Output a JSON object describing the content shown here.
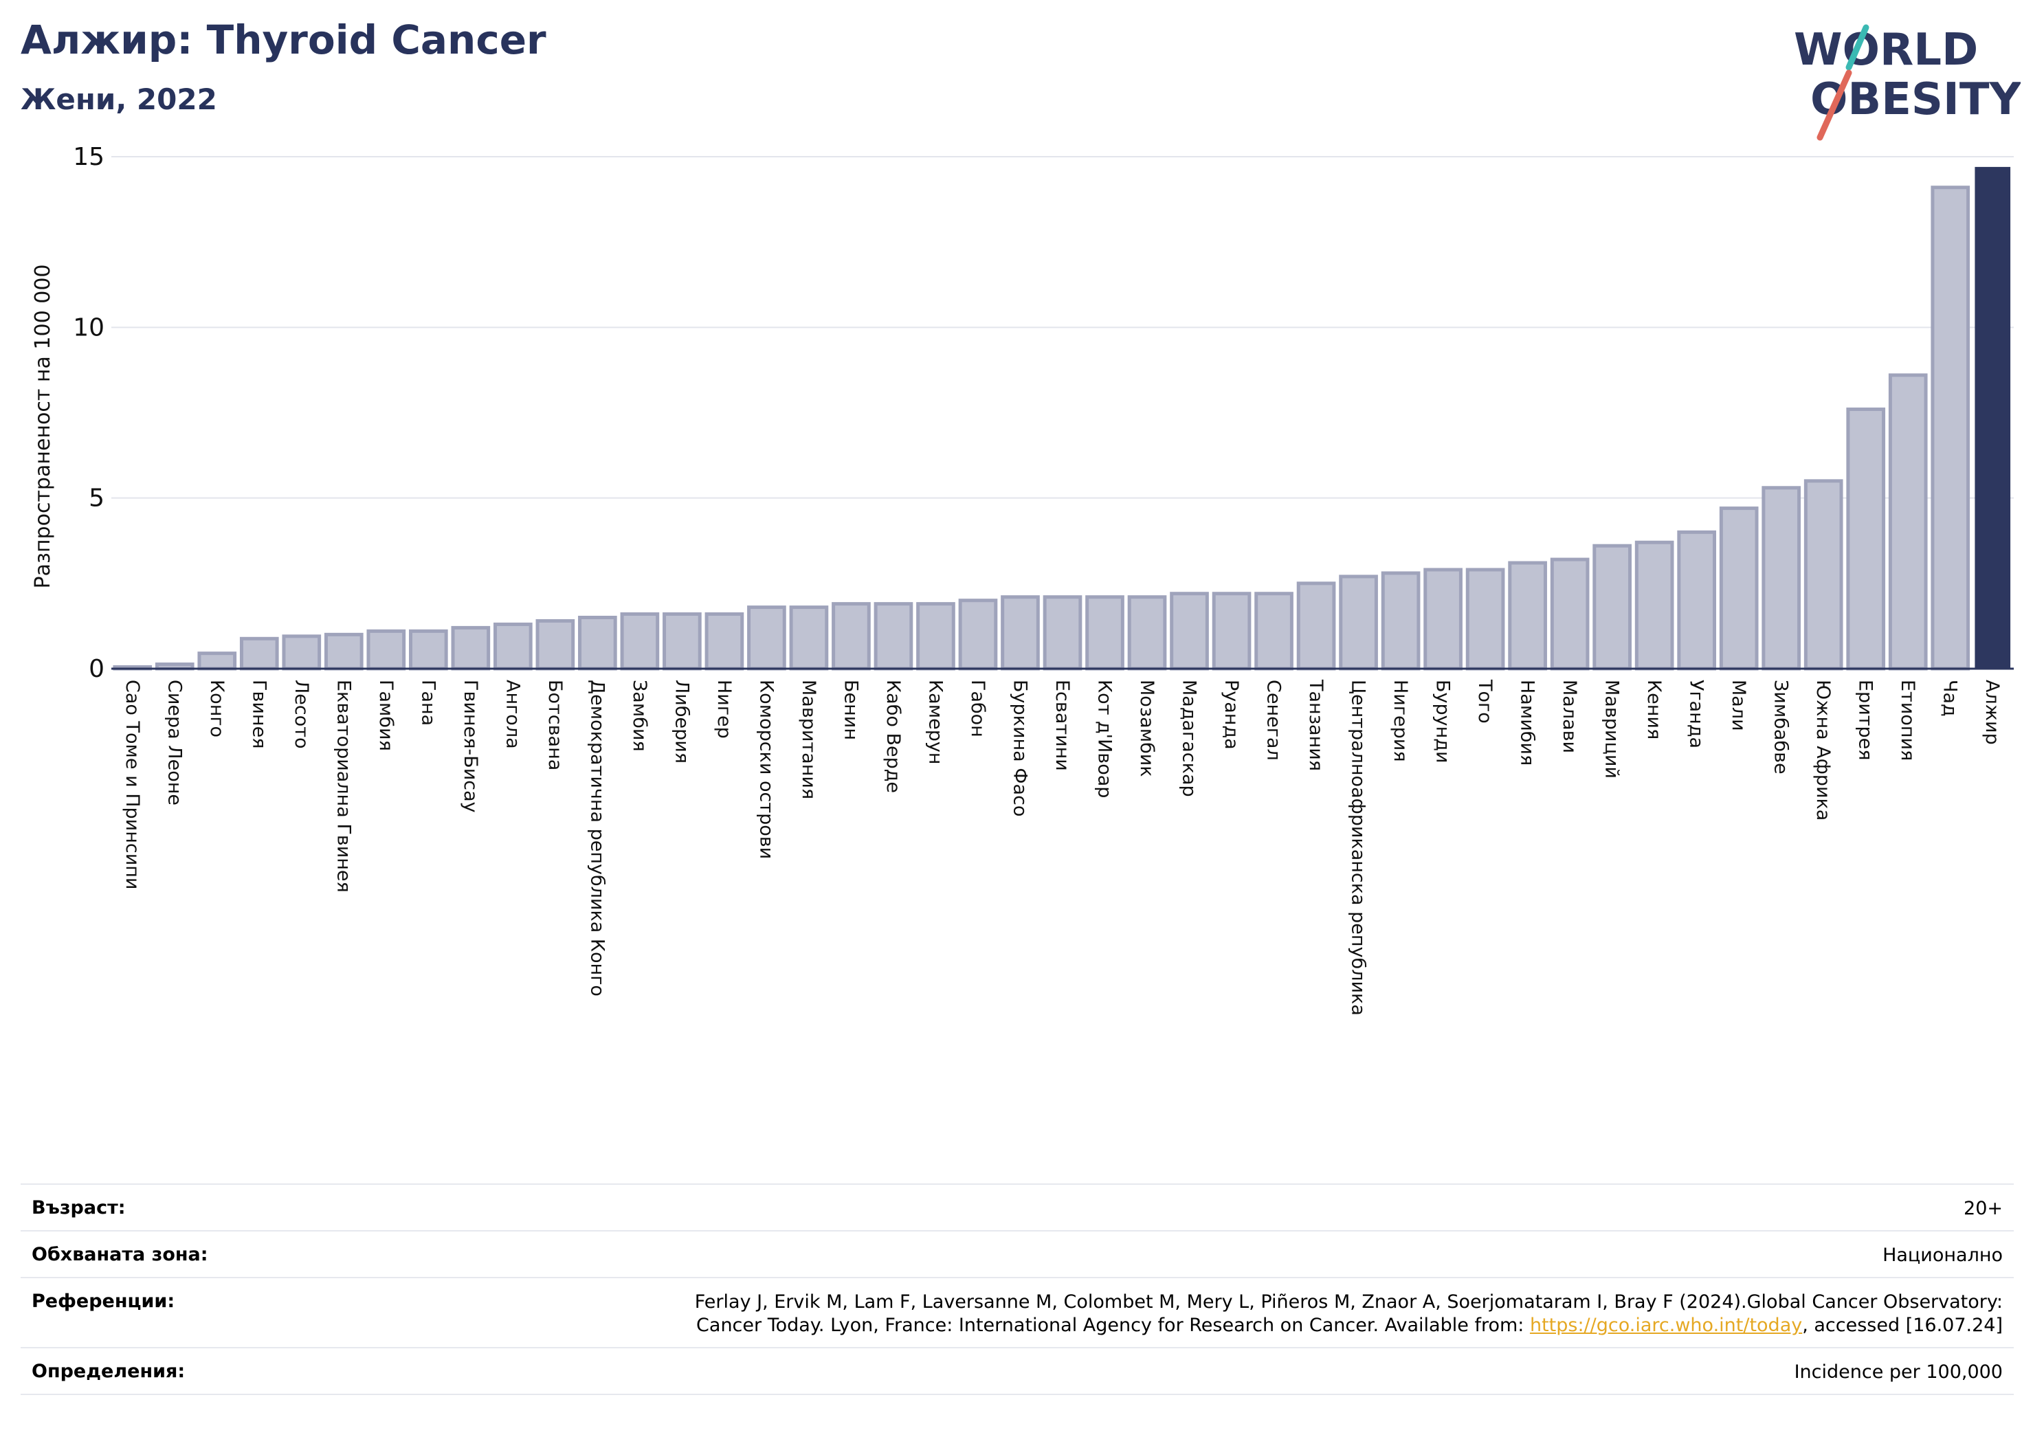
{
  "header": {
    "title": "Алжир: Thyroid Cancer",
    "subtitle": "Жени, 2022",
    "logo_line1": "WORLD",
    "logo_line2": "OBESITY"
  },
  "colors": {
    "title": "#28335c",
    "bar_fill": "#bfc2d2",
    "bar_stroke": "#9fa3bb",
    "highlight": "#2d375f",
    "grid": "#e3e5ec",
    "link": "#e5a823",
    "logo_teal": "#3bb9b3",
    "logo_red": "#e0685a"
  },
  "chart_data": {
    "type": "bar",
    "ylabel": "Разпространеност  на 100 000",
    "ylim": [
      0,
      15
    ],
    "yticks": [
      0,
      5,
      10,
      15
    ],
    "grid": true,
    "highlight_category": "Алжир",
    "categories": [
      "Сао Томе и Принсипи",
      "Сиера Леоне",
      "Конго",
      "Гвинея",
      "Лесото",
      "Екваториална Гвинея",
      "Гамбия",
      "Гана",
      "Гвинея-Бисау",
      "Ангола",
      "Ботсвана",
      "Демократична република Конго",
      "Замбия",
      "Либерия",
      "Нигер",
      "Коморски острови",
      "Мавритания",
      "Бенин",
      "Кабо Верде",
      "Камерун",
      "Габон",
      "Буркина Фасо",
      "Есватини",
      "Кот д'Ивоар",
      "Мозамбик",
      "Мадагаскар",
      "Руанда",
      "Сенегал",
      "Танзания",
      "Централноафриканска република",
      "Нигерия",
      "Бурунди",
      "Того",
      "Намибия",
      "Малави",
      "Мавриций",
      "Кения",
      "Уганда",
      "Мали",
      "Зимбабве",
      "Южна Африка",
      "Еритрея",
      "Етиопия",
      "Чад",
      "Алжир"
    ],
    "values": [
      0.05,
      0.13,
      0.45,
      0.88,
      0.95,
      1.0,
      1.1,
      1.1,
      1.2,
      1.3,
      1.4,
      1.5,
      1.6,
      1.6,
      1.6,
      1.8,
      1.8,
      1.9,
      1.9,
      1.9,
      2.0,
      2.1,
      2.1,
      2.1,
      2.1,
      2.2,
      2.2,
      2.2,
      2.5,
      2.7,
      2.8,
      2.9,
      2.9,
      3.1,
      3.2,
      3.6,
      3.7,
      4.0,
      4.7,
      5.3,
      5.5,
      7.6,
      8.6,
      14.1,
      14.7
    ]
  },
  "meta": {
    "age_label": "Възраст:",
    "age_value": "20+",
    "area_label": "Обхваната зона:",
    "area_value": "Национално",
    "refs_label": "Референции:",
    "refs_line1": "Ferlay J, Ervik M, Lam F, Laversanne M, Colombet M, Mery L, Piñeros M, Znaor A, Soerjomataram I, Bray F (2024).Global Cancer Observatory:",
    "refs_line2_pre": "Cancer Today. Lyon, France: International Agency for Research on Cancer. Available from: ",
    "refs_link": "https://gco.iarc.who.int/today",
    "refs_line2_post": ", accessed [16.07.24]",
    "defs_label": "Определения:",
    "defs_value": "Incidence per 100,000"
  }
}
